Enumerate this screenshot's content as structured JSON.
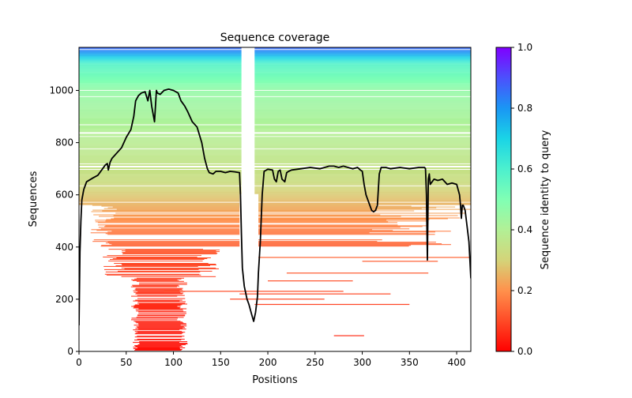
{
  "chart_data": {
    "type": "heatmap",
    "title": "Sequence coverage",
    "xlabel": "Positions",
    "ylabel": "Sequences",
    "xlim": [
      0,
      415
    ],
    "ylim": [
      0,
      1165
    ],
    "xticks": [
      0,
      50,
      100,
      150,
      200,
      250,
      300,
      350,
      400
    ],
    "yticks": [
      0,
      200,
      400,
      600,
      800,
      1000
    ],
    "colorbar": {
      "label": "Sequence identity to query",
      "range": [
        0.0,
        1.0
      ],
      "ticks": [
        "0.0",
        "0.2",
        "0.4",
        "0.6",
        "0.8",
        "1.0"
      ],
      "colormap": "rainbow"
    },
    "heatmap_bands": [
      {
        "seq_from": 1100,
        "seq_to": 1165,
        "identity": 0.72
      },
      {
        "seq_from": 1000,
        "seq_to": 1100,
        "identity": 0.52
      },
      {
        "seq_from": 850,
        "seq_to": 1000,
        "identity": 0.4
      },
      {
        "seq_from": 650,
        "seq_to": 850,
        "identity": 0.34
      },
      {
        "seq_from": 550,
        "seq_to": 650,
        "identity": 0.27
      },
      {
        "seq_from": 480,
        "seq_to": 550,
        "identity": 0.2
      },
      {
        "seq_from": 350,
        "seq_to": 480,
        "identity": 0.14
      },
      {
        "seq_from": 0,
        "seq_to": 350,
        "identity": 0.05
      }
    ],
    "series": [
      {
        "name": "coverage",
        "color": "#000000",
        "x": [
          0,
          1,
          2,
          3,
          5,
          8,
          15,
          20,
          25,
          28,
          30,
          31,
          33,
          35,
          40,
          45,
          50,
          55,
          58,
          60,
          63,
          66,
          70,
          73,
          75,
          77,
          79,
          80,
          82,
          83,
          86,
          90,
          95,
          100,
          105,
          108,
          112,
          115,
          120,
          125,
          130,
          133,
          136,
          138,
          142,
          145,
          150,
          155,
          160,
          165,
          170,
          171,
          172,
          173,
          175,
          178,
          180,
          183,
          185,
          187,
          189,
          190,
          192,
          194,
          196,
          200,
          205,
          207,
          209,
          211,
          213,
          215,
          218,
          220,
          222,
          225,
          235,
          245,
          255,
          265,
          270,
          275,
          280,
          290,
          295,
          298,
          300,
          302,
          304,
          306,
          308,
          310,
          312,
          314,
          316,
          318,
          320,
          325,
          330,
          340,
          350,
          360,
          366,
          367,
          368,
          369,
          370,
          371,
          372,
          374,
          376,
          380,
          385,
          390,
          395,
          400,
          403,
          404,
          405,
          406,
          407,
          409,
          411,
          413,
          415
        ],
        "y": [
          100,
          380,
          500,
          580,
          620,
          650,
          665,
          675,
          700,
          715,
          720,
          695,
          725,
          740,
          760,
          780,
          820,
          850,
          900,
          960,
          980,
          990,
          995,
          960,
          1000,
          940,
          900,
          880,
          1000,
          990,
          985,
          1000,
          1005,
          1000,
          990,
          960,
          940,
          920,
          880,
          860,
          800,
          740,
          700,
          685,
          680,
          690,
          690,
          685,
          690,
          688,
          685,
          600,
          450,
          320,
          250,
          200,
          180,
          140,
          115,
          150,
          210,
          300,
          420,
          600,
          690,
          698,
          695,
          660,
          650,
          690,
          695,
          660,
          650,
          685,
          690,
          695,
          700,
          705,
          700,
          710,
          710,
          705,
          710,
          700,
          705,
          695,
          690,
          640,
          600,
          580,
          560,
          540,
          535,
          540,
          560,
          680,
          705,
          705,
          700,
          705,
          700,
          705,
          705,
          700,
          600,
          350,
          660,
          680,
          640,
          650,
          660,
          655,
          660,
          640,
          645,
          640,
          600,
          560,
          510,
          560,
          560,
          540,
          480,
          420,
          280
        ]
      }
    ]
  }
}
